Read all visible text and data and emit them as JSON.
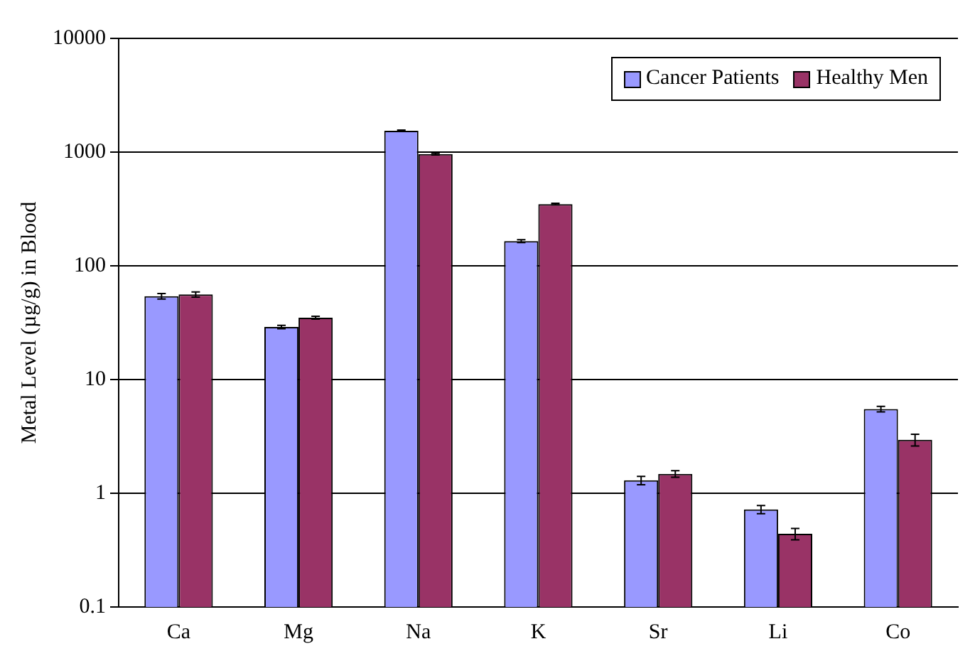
{
  "chart_data": {
    "type": "bar",
    "ylabel": "Metal Level (µg/g) in Blood",
    "categories": [
      "Ca",
      "Mg",
      "Na",
      "K",
      "Sr",
      "Li",
      "Co"
    ],
    "series": [
      {
        "name": "Cancer Patients",
        "color": "#9999ff",
        "values": [
          54,
          29,
          1540,
          165,
          1.3,
          0.72,
          5.5
        ],
        "errors": [
          3,
          1,
          20,
          5,
          0.11,
          0.06,
          0.3
        ]
      },
      {
        "name": "Healthy Men",
        "color": "#993366",
        "values": [
          56,
          35,
          960,
          349,
          1.48,
          0.44,
          2.95
        ],
        "errors": [
          3,
          1,
          15,
          6,
          0.1,
          0.05,
          0.35
        ]
      }
    ],
    "log": true,
    "ylim": [
      0.1,
      10000
    ],
    "yticks": [
      0.1,
      1,
      10,
      100,
      1000,
      10000
    ],
    "grid": "y",
    "legend": "top right"
  }
}
